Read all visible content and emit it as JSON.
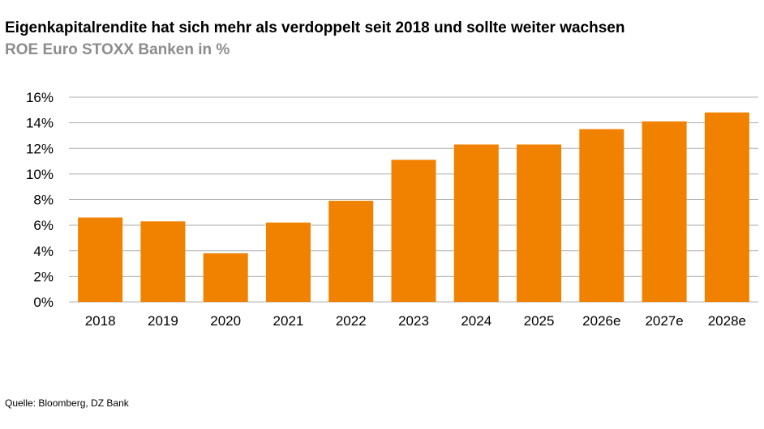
{
  "title": "Eigenkapitalrendite hat sich mehr als verdoppelt seit 2018 und sollte weiter wachsen",
  "subtitle": "ROE Euro STOXX Banken in %",
  "source": "Quelle: Bloomberg, DZ Bank",
  "colors": {
    "bar": "#f08200",
    "grid": "#b3b3b3",
    "subtitle": "#8c8c8c"
  },
  "chart_data": {
    "type": "bar",
    "title": "Eigenkapitalrendite hat sich mehr als verdoppelt seit 2018 und sollte weiter wachsen",
    "subtitle": "ROE Euro STOXX Banken in %",
    "xlabel": "",
    "ylabel": "",
    "categories": [
      "2018",
      "2019",
      "2020",
      "2021",
      "2022",
      "2023",
      "2024",
      "2025",
      "2026e",
      "2027e",
      "2028e"
    ],
    "values": [
      6.6,
      6.3,
      3.8,
      6.2,
      7.9,
      11.1,
      12.3,
      12.3,
      13.5,
      14.1,
      14.8
    ],
    "ylim": [
      0,
      16
    ],
    "yticks": [
      0,
      2,
      4,
      6,
      8,
      10,
      12,
      14,
      16
    ],
    "ytick_labels": [
      "0%",
      "2%",
      "4%",
      "6%",
      "8%",
      "10%",
      "12%",
      "14%",
      "16%"
    ],
    "grid": true,
    "legend": "none"
  }
}
